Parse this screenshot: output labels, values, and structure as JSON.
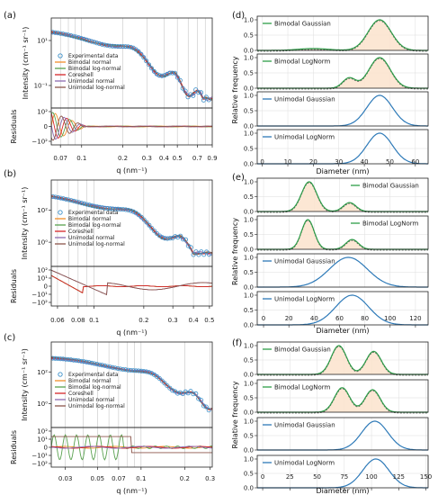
{
  "colors": {
    "experimental": "#3b8fc9",
    "bimodal_normal": "#f28e2b",
    "bimodal_lognormal": "#59a14f",
    "coreshell": "#d62728",
    "unimodal_normal": "#8c6bb1",
    "unimodal_lognormal": "#8c564b",
    "blue": "#2e7ab8",
    "green": "#2e9d49",
    "gray": "#555555",
    "fill": "#fbe3cc"
  },
  "labels": {
    "intensity": "Intensity (cm⁻¹ sr⁻¹)",
    "residuals": "Residuals",
    "q": "q (nm⁻¹)",
    "rel": "Relative frequency",
    "diameter": "Diameter (nm)"
  },
  "chart_data": [
    {
      "panel": "(a)",
      "type": "scatter",
      "yscale": "log",
      "ylim": [
        0.01,
        200
      ],
      "xlim": [
        0.06,
        0.9
      ],
      "yticks": [
        "10¹",
        "10⁻¹"
      ],
      "legend": [
        "Experimental data",
        "Bimodal normal",
        "Bimodal log-normal",
        "Coreshell",
        "Unimodal normal",
        "Unimodal log-normal"
      ],
      "residual_yticks": [
        "10²",
        "0",
        "−10²"
      ],
      "xticks": [
        "0.07",
        "0.1",
        "0.2",
        "0.3",
        "0.4",
        "0.5",
        "0.7",
        "0.9"
      ],
      "xlabel": "q (nm⁻¹)",
      "curve": {
        "logI0": 1.75,
        "R": 12.5,
        "decay": 2.6,
        "base": -1.55
      }
    },
    {
      "panel": "(b)",
      "type": "scatter",
      "yscale": "log",
      "ylim": [
        0.05,
        2000
      ],
      "xlim": [
        0.055,
        0.52
      ],
      "yticks": [
        "10²",
        "10⁰"
      ],
      "legend": [
        "Experimental data",
        "Bimodal normal",
        "Bimodal log-normal",
        "Coreshell",
        "Unimodal normal",
        "Unimodal log-normal"
      ],
      "residual_yticks": [
        "10²",
        "10¹",
        "0",
        "−10¹",
        "−10²"
      ],
      "xticks": [
        "0.06",
        "0.08",
        "0.1",
        "0.2",
        "0.3",
        "0.4",
        "0.5"
      ],
      "xlabel": "q (nm⁻¹)",
      "curve": {
        "logI0": 2.7,
        "R": 17.5,
        "decay": 3.0,
        "base": -0.6
      }
    },
    {
      "panel": "(c)",
      "type": "scatter",
      "yscale": "log",
      "ylim": [
        0.01,
        20000
      ],
      "xlim": [
        0.024,
        0.31
      ],
      "yticks": [
        "10²",
        "10⁰"
      ],
      "legend": [
        "Experimental data",
        "Bimodal normal",
        "Bimodal log-normal",
        "Coreshell",
        "Unimodal normal",
        "Unimodal log-normal"
      ],
      "residual_yticks": [
        "10²",
        "10¹",
        "0",
        "−10¹",
        "−10²"
      ],
      "xticks": [
        "0.03",
        "0.05",
        "0.07",
        "0.1",
        "0.2",
        "0.3"
      ],
      "xlabel": "q (nm⁻¹)",
      "curve": {
        "logI0": 3.2,
        "R": 26,
        "decay": 3.2,
        "base": -1.2
      }
    },
    {
      "panel": "(d)",
      "type": "line",
      "xlim": [
        -2,
        65
      ],
      "ylim": [
        0,
        1.0
      ],
      "xticks": [
        0,
        10,
        20,
        30,
        40,
        50,
        60
      ],
      "yticks": [
        "0.0",
        "0.5",
        "1.0"
      ],
      "xlabel": "Diameter (nm)",
      "subplots": [
        {
          "name": "Bimodal Gaussian",
          "color": "green",
          "peaks": [
            [
              20,
              6,
              0.06
            ],
            [
              46,
              4.5,
              1.0
            ]
          ]
        },
        {
          "name": "Bimodal LogNorm",
          "color": "green",
          "peaks": [
            [
              34,
              2.5,
              0.33
            ],
            [
              46,
              4.2,
              1.0
            ]
          ]
        },
        {
          "name": "Unimodal Gaussian",
          "color": "blue",
          "peaks": [
            [
              46,
              5,
              1.0
            ]
          ]
        },
        {
          "name": "Unimodal LogNorm",
          "color": "blue",
          "peaks": [
            [
              46,
              5,
              1.0
            ]
          ]
        }
      ]
    },
    {
      "panel": "(e)",
      "type": "line",
      "xlim": [
        -5,
        130
      ],
      "ylim": [
        0,
        1.0
      ],
      "xticks": [
        0,
        20,
        40,
        60,
        80,
        100,
        120
      ],
      "yticks": [
        "0.0",
        "0.5",
        "1.0"
      ],
      "xlabel": "Diameter (nm)",
      "subplots": [
        {
          "name": "Bimodal Gaussian",
          "color": "green",
          "peaks": [
            [
              36,
              6,
              1.0
            ],
            [
              68,
              5,
              0.3
            ]
          ]
        },
        {
          "name": "Bimodal LogNorm",
          "color": "green",
          "peaks": [
            [
              35,
              5,
              1.0
            ],
            [
              70,
              5,
              0.33
            ]
          ]
        },
        {
          "name": "Unimodal Gaussian",
          "color": "blue",
          "peaks": [
            [
              67,
              15,
              1.0
            ]
          ]
        },
        {
          "name": "Unimodal LogNorm",
          "color": "blue",
          "peaks": [
            [
              70,
              13,
              1.0
            ]
          ]
        }
      ]
    },
    {
      "panel": "(f)",
      "type": "line",
      "xlim": [
        -5,
        152
      ],
      "ylim": [
        0,
        1.0
      ],
      "xticks": [
        0,
        25,
        50,
        75,
        100,
        125,
        150
      ],
      "yticks": [
        "0.0",
        "0.5",
        "1.0"
      ],
      "xlabel": "Diameter (nm)",
      "subplots": [
        {
          "name": "Bimodal Gaussian",
          "color": "green",
          "peaks": [
            [
              70,
              7,
              1.0
            ],
            [
              102,
              7,
              0.8
            ]
          ]
        },
        {
          "name": "Bimodal LogNorm",
          "color": "green",
          "peaks": [
            [
              73,
              7,
              0.85
            ],
            [
              101,
              7,
              0.78
            ]
          ]
        },
        {
          "name": "Unimodal Gaussian",
          "color": "blue",
          "peaks": [
            [
              103,
              12,
              1.0
            ]
          ]
        },
        {
          "name": "Unimodal LogNorm",
          "color": "blue",
          "peaks": [
            [
              104,
              12,
              1.0
            ]
          ]
        }
      ]
    }
  ]
}
